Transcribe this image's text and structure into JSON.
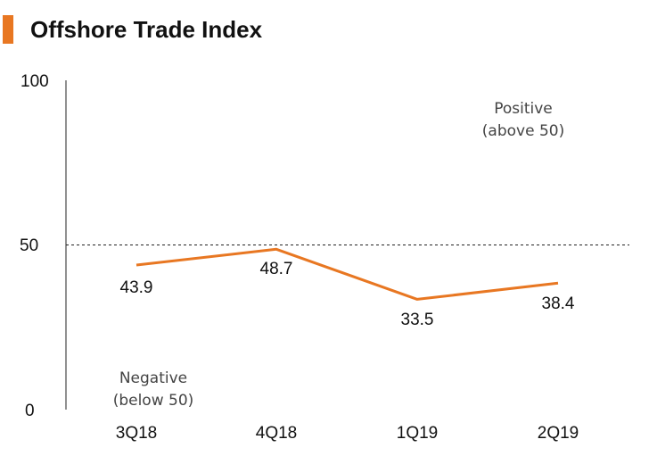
{
  "colors": {
    "accent": "#e87722",
    "axis": "#222222",
    "text": "#111111",
    "note": "#444444"
  },
  "chart_data": {
    "type": "line",
    "title": "Offshore Trade Index",
    "categories": [
      "3Q18",
      "4Q18",
      "1Q19",
      "2Q19"
    ],
    "series": [
      {
        "name": "Offshore Trade Index",
        "values": [
          43.9,
          48.7,
          33.5,
          38.4
        ]
      }
    ],
    "data_labels": [
      "43.9",
      "48.7",
      "33.5",
      "38.4"
    ],
    "y_ticks": [
      "0",
      "50",
      "100"
    ],
    "ylim": [
      0,
      100
    ],
    "reference_line": {
      "value": 50,
      "style": "dashed"
    },
    "annotations": {
      "positive_line1": "Positive",
      "positive_line2": "(above 50)",
      "negative_line1": "Negative",
      "negative_line2": "(below 50)"
    },
    "xlabel": "",
    "ylabel": "",
    "grid": false
  }
}
